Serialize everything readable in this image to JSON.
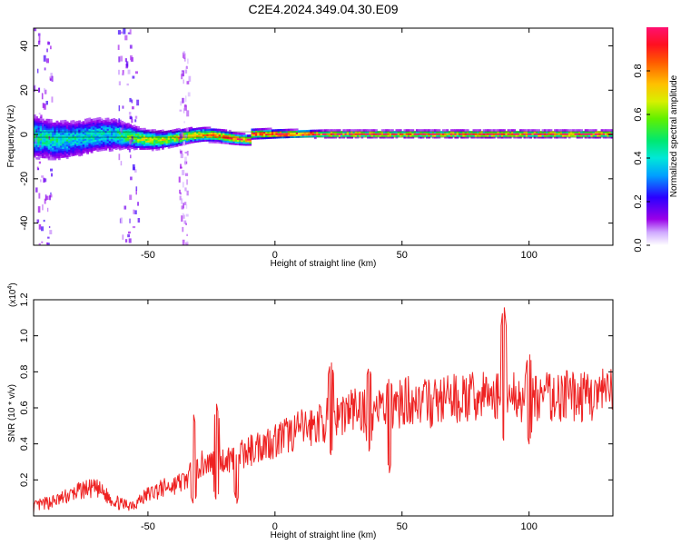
{
  "title": "C2E4.2024.349.04.30.E09",
  "chart_data": [
    {
      "type": "heatmap",
      "xlabel": "Height of straight line (km)",
      "ylabel": "Frequency (Hz)",
      "xlim": [
        -95,
        133
      ],
      "ylim": [
        -50,
        48
      ],
      "xticks": [
        -50,
        0,
        50,
        100
      ],
      "yticks": [
        -40,
        -20,
        0,
        20,
        40
      ],
      "colorbar": {
        "label": "Normalized spectral amplitude",
        "range": [
          0,
          1
        ],
        "ticks": [
          "0.0",
          "0.2",
          "0.4",
          "0.6",
          "0.8"
        ],
        "tick_values": [
          0.0,
          0.2,
          0.4,
          0.6,
          0.8
        ]
      },
      "dominant_band": {
        "frequency_hz": 0,
        "x_range": [
          -95,
          133
        ],
        "amplitude_profile": {
          "x": [
            -95,
            -80,
            -65,
            -55,
            -45,
            -35,
            -25,
            -15,
            0,
            20,
            50,
            90,
            100,
            133
          ],
          "peak_amplitude": [
            0.45,
            0.4,
            0.38,
            0.6,
            0.65,
            0.7,
            0.75,
            0.85,
            0.92,
            0.95,
            0.96,
            0.97,
            0.97,
            0.98
          ],
          "spread_hz": [
            10,
            9,
            8,
            5,
            4,
            3.5,
            3,
            2.5,
            2,
            1.5,
            1.5,
            1.5,
            1.5,
            1.5
          ]
        }
      },
      "noise_streaks": [
        {
          "x_range": [
            -95,
            -88
          ],
          "frequency_range": [
            -50,
            48
          ],
          "amplitude": 0.15
        },
        {
          "x_range": [
            -62,
            -54
          ],
          "frequency_range": [
            -50,
            48
          ],
          "amplitude": 0.15
        },
        {
          "x_range": [
            -38,
            -34
          ],
          "frequency_range": [
            -50,
            38
          ],
          "amplitude": 0.1
        }
      ]
    },
    {
      "type": "line",
      "xlabel": "Height of straight line (km)",
      "ylabel": "SNR (10 * v/v)",
      "yscale_label": "(x10",
      "yscale_exponent": "4",
      "xlim": [
        -95,
        133
      ],
      "ylim": [
        0,
        12000
      ],
      "xticks": [
        -50,
        0,
        50,
        100
      ],
      "yticks": [
        2000,
        4000,
        6000,
        8000,
        10000,
        12000
      ],
      "ytick_labels": [
        "0.2",
        "0.4",
        "0.6",
        "0.8",
        "1.0",
        "1.2"
      ],
      "series": [
        {
          "color": "#ee2222",
          "x": [
            -95,
            -85,
            -75,
            -70,
            -65,
            -60,
            -55,
            -50,
            -45,
            -40,
            -35,
            -32,
            -30,
            -25,
            -20,
            -15,
            -10,
            -5,
            0,
            5,
            10,
            15,
            20,
            25,
            30,
            35,
            40,
            45,
            50,
            55,
            60,
            65,
            70,
            75,
            80,
            85,
            90,
            95,
            100,
            105,
            110,
            115,
            120,
            125,
            133
          ],
          "values": [
            500,
            900,
            1500,
            1500,
            1000,
            600,
            700,
            1200,
            1500,
            1700,
            2000,
            2500,
            2800,
            3000,
            3100,
            3300,
            3600,
            4000,
            4200,
            4500,
            4800,
            5000,
            5300,
            5600,
            5900,
            5900,
            6000,
            5800,
            6300,
            6500,
            6200,
            6400,
            6500,
            6500,
            6600,
            6700,
            6500,
            6700,
            6600,
            6600,
            6600,
            6700,
            6600,
            6700,
            6800
          ]
        }
      ],
      "annotations_spikes": [
        {
          "x": -32,
          "peak": 5600,
          "trough": 600
        },
        {
          "x": -23,
          "peak": 6200,
          "trough": 800
        },
        {
          "x": -15,
          "peak": 3400,
          "trough": 700
        },
        {
          "x": 22,
          "peak": 8700,
          "trough": 3400
        },
        {
          "x": 37,
          "peak": 8300,
          "trough": 3600
        },
        {
          "x": 45,
          "peak": 7700,
          "trough": 2400
        },
        {
          "x": 90,
          "peak": 11900,
          "trough": 4200
        },
        {
          "x": 100,
          "peak": 9100,
          "trough": 4000
        }
      ]
    }
  ]
}
